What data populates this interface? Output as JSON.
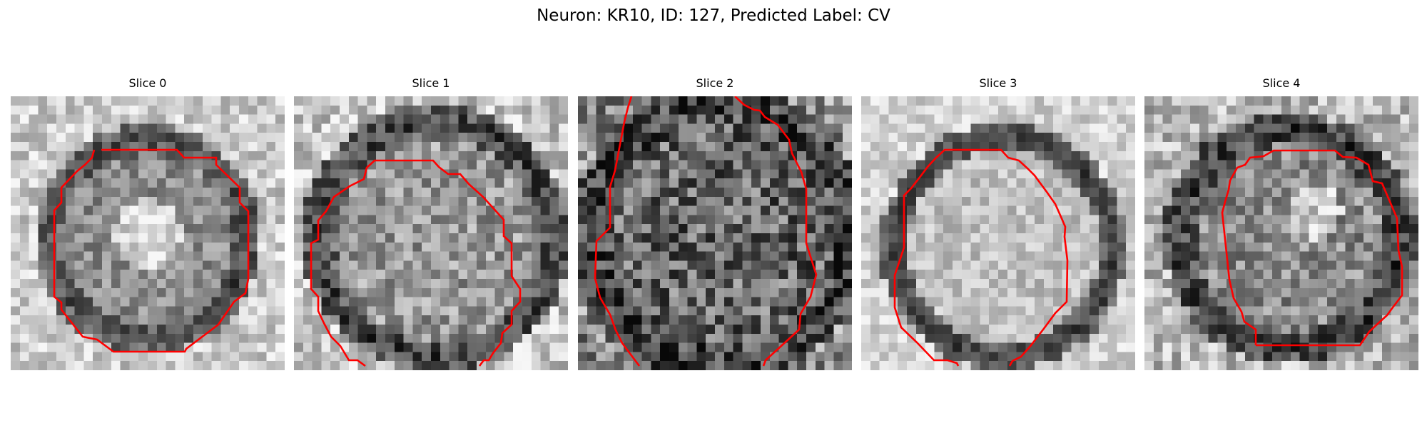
{
  "figure": {
    "title": "Neuron: KR10, ID: 127, Predicted Label: CV"
  },
  "panels": [
    {
      "title": "Slice 0"
    },
    {
      "title": "Slice 1"
    },
    {
      "title": "Slice 2"
    },
    {
      "title": "Slice 3"
    },
    {
      "title": "Slice 4"
    }
  ],
  "colors": {
    "contour": "#ff0000",
    "background": "#ffffff"
  },
  "image": {
    "colormap": "grayscale",
    "grid": "30x30 pixels"
  }
}
